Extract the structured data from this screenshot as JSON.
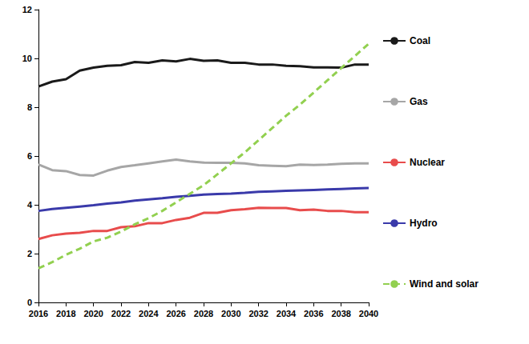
{
  "chart_data": {
    "type": "line",
    "x": [
      2016,
      2017,
      2018,
      2019,
      2020,
      2021,
      2022,
      2023,
      2024,
      2025,
      2026,
      2027,
      2028,
      2029,
      2030,
      2031,
      2032,
      2033,
      2034,
      2035,
      2036,
      2037,
      2038,
      2039,
      2040
    ],
    "xlim": [
      2016,
      2040
    ],
    "xticks": [
      2016,
      2018,
      2020,
      2022,
      2024,
      2026,
      2028,
      2030,
      2032,
      2034,
      2036,
      2038,
      2040
    ],
    "ylim": [
      0,
      12
    ],
    "yticks": [
      0,
      2,
      4,
      6,
      8,
      10,
      12
    ],
    "grid": false,
    "legend": "right",
    "series": [
      {
        "name": "Coal",
        "color": "#1a1a1a",
        "line_style": "solid",
        "values": [
          8.85,
          9.05,
          9.15,
          9.5,
          9.62,
          9.7,
          9.72,
          9.85,
          9.82,
          9.92,
          9.88,
          9.98,
          9.9,
          9.92,
          9.82,
          9.82,
          9.75,
          9.75,
          9.7,
          9.68,
          9.63,
          9.63,
          9.62,
          9.75,
          9.75
        ]
      },
      {
        "name": "Gas",
        "color": "#a6a6a6",
        "line_style": "solid",
        "values": [
          5.65,
          5.42,
          5.38,
          5.22,
          5.2,
          5.4,
          5.55,
          5.62,
          5.7,
          5.78,
          5.85,
          5.78,
          5.73,
          5.72,
          5.72,
          5.7,
          5.62,
          5.6,
          5.58,
          5.65,
          5.63,
          5.65,
          5.68,
          5.7,
          5.7
        ]
      },
      {
        "name": "Nuclear",
        "color": "#e84c4c",
        "line_style": "solid",
        "values": [
          2.6,
          2.75,
          2.82,
          2.85,
          2.93,
          2.93,
          3.08,
          3.12,
          3.25,
          3.25,
          3.38,
          3.47,
          3.67,
          3.67,
          3.78,
          3.82,
          3.88,
          3.87,
          3.87,
          3.78,
          3.8,
          3.75,
          3.75,
          3.7,
          3.7
        ]
      },
      {
        "name": "Hydro",
        "color": "#3a3aaa",
        "line_style": "solid",
        "values": [
          3.75,
          3.83,
          3.88,
          3.93,
          3.98,
          4.05,
          4.1,
          4.17,
          4.22,
          4.27,
          4.33,
          4.37,
          4.42,
          4.44,
          4.46,
          4.49,
          4.53,
          4.55,
          4.57,
          4.59,
          4.61,
          4.63,
          4.65,
          4.67,
          4.69
        ]
      },
      {
        "name": "Wind and solar",
        "color": "#92d050",
        "line_style": "dashed",
        "values": [
          1.4,
          1.65,
          1.95,
          2.2,
          2.5,
          2.65,
          2.9,
          3.2,
          3.45,
          3.75,
          4.1,
          4.45,
          4.8,
          5.25,
          5.7,
          6.15,
          6.65,
          7.15,
          7.65,
          8.1,
          8.6,
          9.1,
          9.6,
          10.1,
          10.6
        ]
      }
    ]
  }
}
